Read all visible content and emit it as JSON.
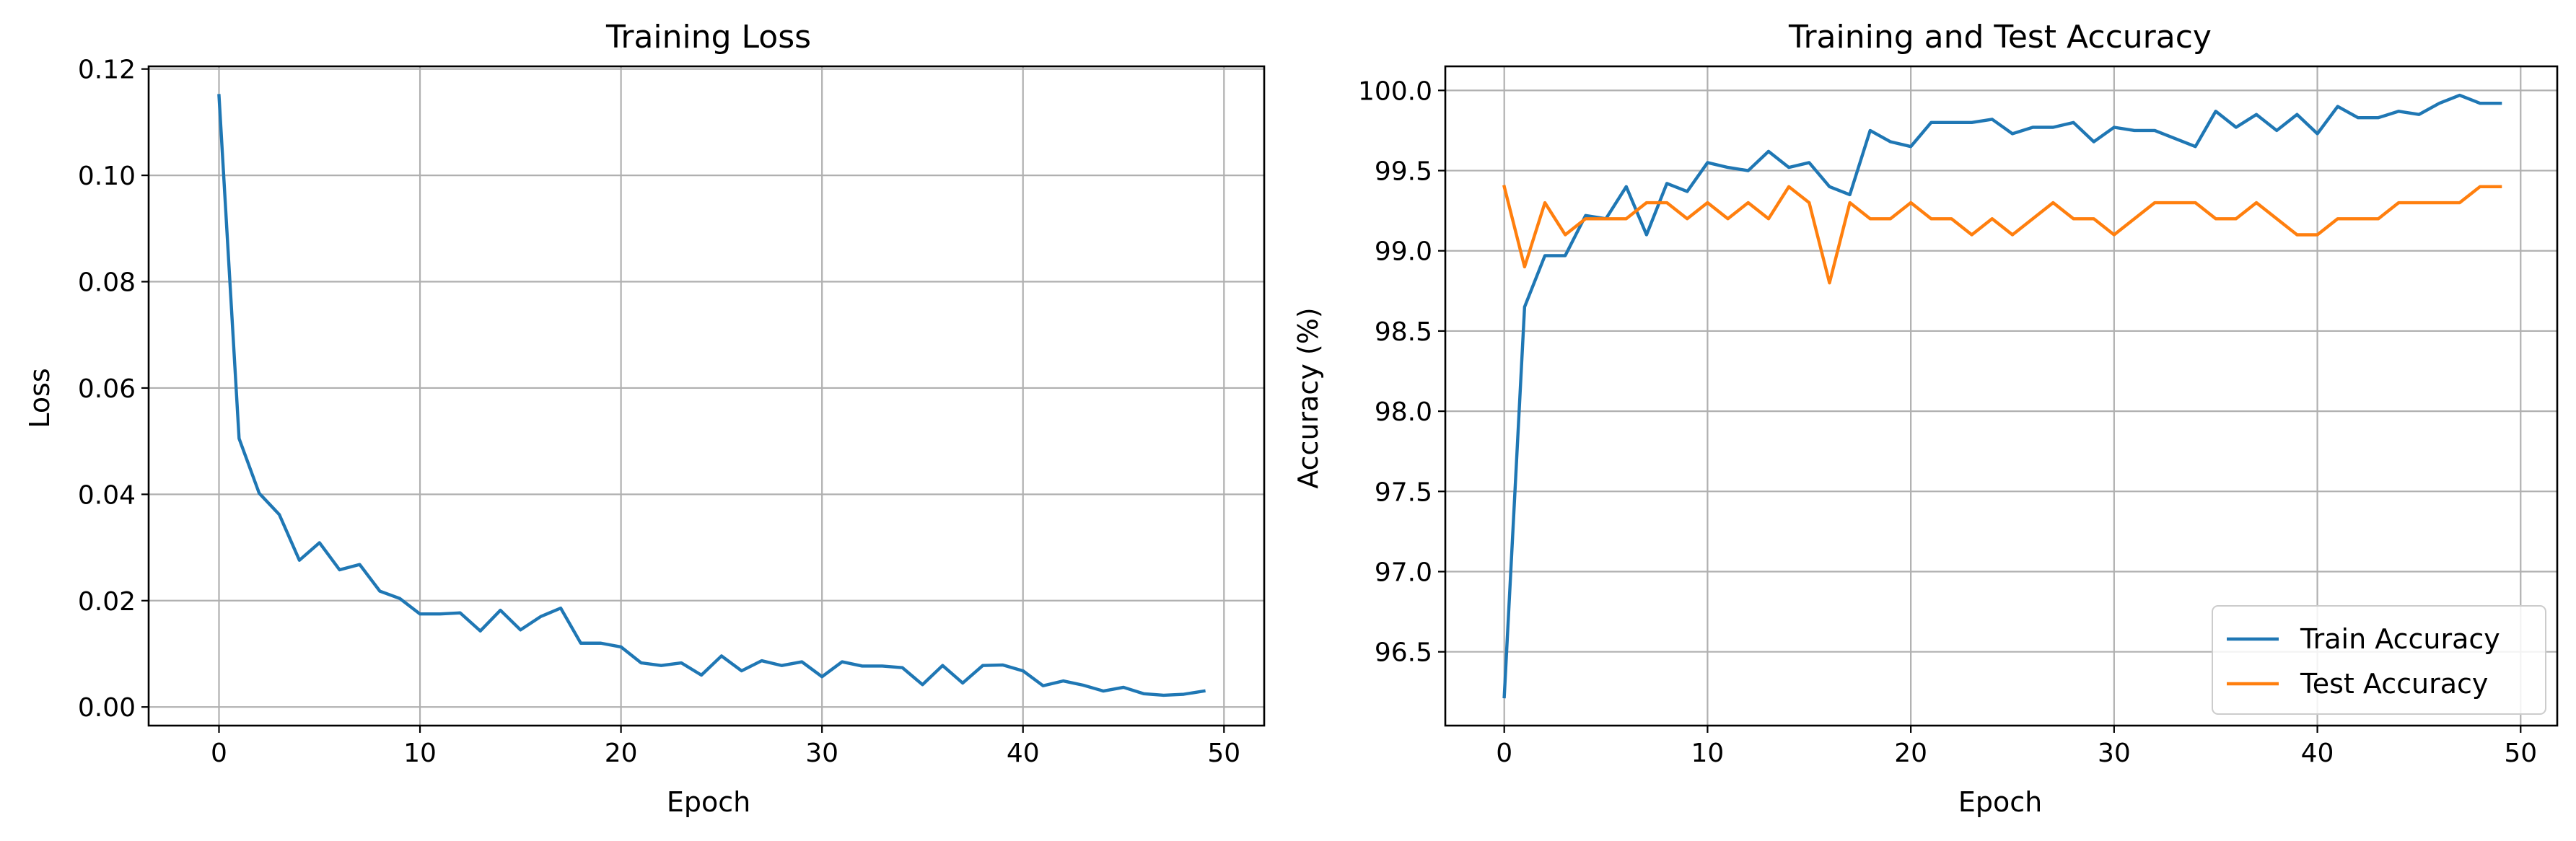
{
  "chart_data": [
    {
      "type": "line",
      "title": "Training Loss",
      "xlabel": "Epoch",
      "ylabel": "Loss",
      "xlim": [
        -3.5,
        52
      ],
      "ylim": [
        -0.0035,
        0.1205
      ],
      "xticks": [
        0,
        10,
        20,
        30,
        40,
        50
      ],
      "yticks": [
        0.0,
        0.02,
        0.04,
        0.06,
        0.08,
        0.1,
        0.12
      ],
      "ytick_labels": [
        "0.00",
        "0.02",
        "0.04",
        "0.06",
        "0.08",
        "0.10",
        "0.12"
      ],
      "grid": true,
      "x": [
        0,
        1,
        2,
        3,
        4,
        5,
        6,
        7,
        8,
        9,
        10,
        11,
        12,
        13,
        14,
        15,
        16,
        17,
        18,
        19,
        20,
        21,
        22,
        23,
        24,
        25,
        26,
        27,
        28,
        29,
        30,
        31,
        32,
        33,
        34,
        35,
        36,
        37,
        38,
        39,
        40,
        41,
        42,
        43,
        44,
        45,
        46,
        47,
        48,
        49
      ],
      "series": [
        {
          "name": "",
          "color": "#1f77b4",
          "values": [
            0.115,
            0.0505,
            0.0402,
            0.0362,
            0.0276,
            0.0309,
            0.0258,
            0.0268,
            0.0218,
            0.0204,
            0.0175,
            0.0175,
            0.0177,
            0.0143,
            0.0182,
            0.0145,
            0.017,
            0.0186,
            0.012,
            0.012,
            0.0113,
            0.0083,
            0.0078,
            0.0083,
            0.006,
            0.0096,
            0.0068,
            0.0087,
            0.0078,
            0.0085,
            0.0057,
            0.0085,
            0.0077,
            0.0077,
            0.0074,
            0.0042,
            0.0078,
            0.0045,
            0.0078,
            0.0079,
            0.0068,
            0.004,
            0.0049,
            0.0041,
            0.003,
            0.0037,
            0.0025,
            0.0022,
            0.0024,
            0.003
          ]
        }
      ]
    },
    {
      "type": "line",
      "title": "Training and Test Accuracy",
      "xlabel": "Epoch",
      "ylabel": "Accuracy (%)",
      "xlim": [
        -2.9,
        51.8
      ],
      "ylim": [
        96.04,
        100.15
      ],
      "xticks": [
        0,
        10,
        20,
        30,
        40,
        50
      ],
      "yticks": [
        96.5,
        97.0,
        97.5,
        98.0,
        98.5,
        99.0,
        99.5,
        100.0
      ],
      "ytick_labels": [
        "96.5",
        "97.0",
        "97.5",
        "98.0",
        "98.5",
        "99.0",
        "99.5",
        "100.0"
      ],
      "grid": true,
      "legend": "lower-right",
      "x": [
        0,
        1,
        2,
        3,
        4,
        5,
        6,
        7,
        8,
        9,
        10,
        11,
        12,
        13,
        14,
        15,
        16,
        17,
        18,
        19,
        20,
        21,
        22,
        23,
        24,
        25,
        26,
        27,
        28,
        29,
        30,
        31,
        32,
        33,
        34,
        35,
        36,
        37,
        38,
        39,
        40,
        41,
        42,
        43,
        44,
        45,
        46,
        47,
        48,
        49
      ],
      "series": [
        {
          "name": "Train Accuracy",
          "color": "#1f77b4",
          "values": [
            96.22,
            98.65,
            98.97,
            98.97,
            99.22,
            99.2,
            99.4,
            99.1,
            99.42,
            99.37,
            99.55,
            99.52,
            99.5,
            99.62,
            99.52,
            99.55,
            99.4,
            99.35,
            99.75,
            99.68,
            99.65,
            99.8,
            99.8,
            99.8,
            99.82,
            99.73,
            99.77,
            99.77,
            99.8,
            99.68,
            99.77,
            99.75,
            99.75,
            99.7,
            99.65,
            99.87,
            99.77,
            99.85,
            99.75,
            99.85,
            99.73,
            99.9,
            99.83,
            99.83,
            99.87,
            99.85,
            99.92,
            99.97,
            99.92,
            99.92
          ]
        },
        {
          "name": "Test Accuracy",
          "color": "#ff7f0e",
          "values": [
            99.4,
            98.9,
            99.3,
            99.1,
            99.2,
            99.2,
            99.2,
            99.3,
            99.3,
            99.2,
            99.3,
            99.2,
            99.3,
            99.2,
            99.4,
            99.3,
            98.8,
            99.3,
            99.2,
            99.2,
            99.3,
            99.2,
            99.2,
            99.1,
            99.2,
            99.1,
            99.2,
            99.3,
            99.2,
            99.2,
            99.1,
            99.2,
            99.3,
            99.3,
            99.3,
            99.2,
            99.2,
            99.3,
            99.2,
            99.1,
            99.1,
            99.2,
            99.2,
            99.2,
            99.3,
            99.3,
            99.3,
            99.3,
            99.4,
            99.4
          ]
        }
      ]
    }
  ]
}
